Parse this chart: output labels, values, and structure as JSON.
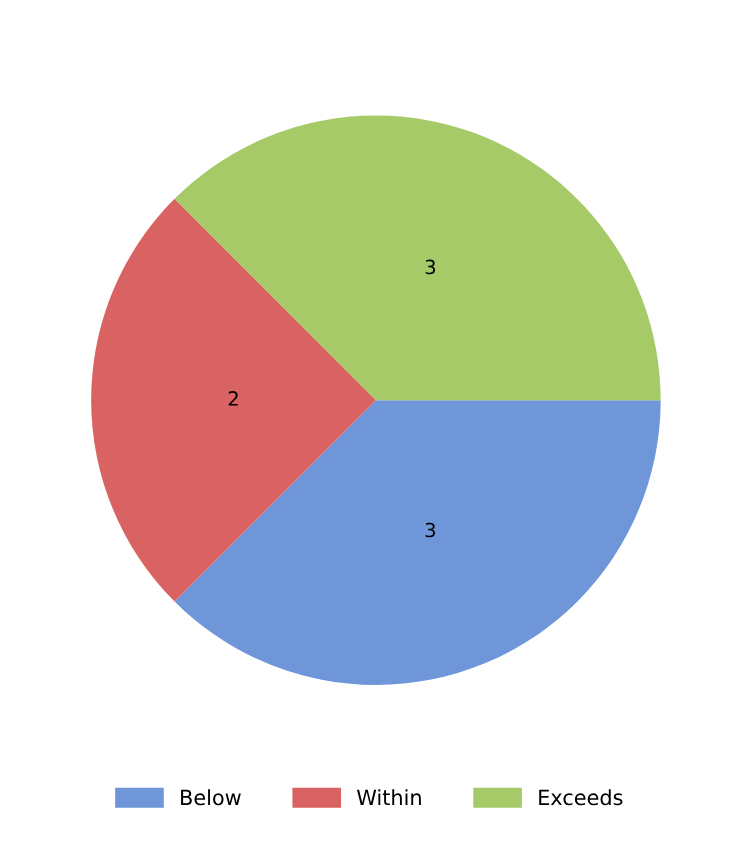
{
  "chart_data": {
    "type": "pie",
    "categories": [
      "Below",
      "Within",
      "Exceeds"
    ],
    "values": [
      3,
      2,
      3
    ],
    "colors": [
      "#6f96d8",
      "#d96362",
      "#a6ca68"
    ],
    "data_labels": true,
    "legend": "bottom"
  }
}
